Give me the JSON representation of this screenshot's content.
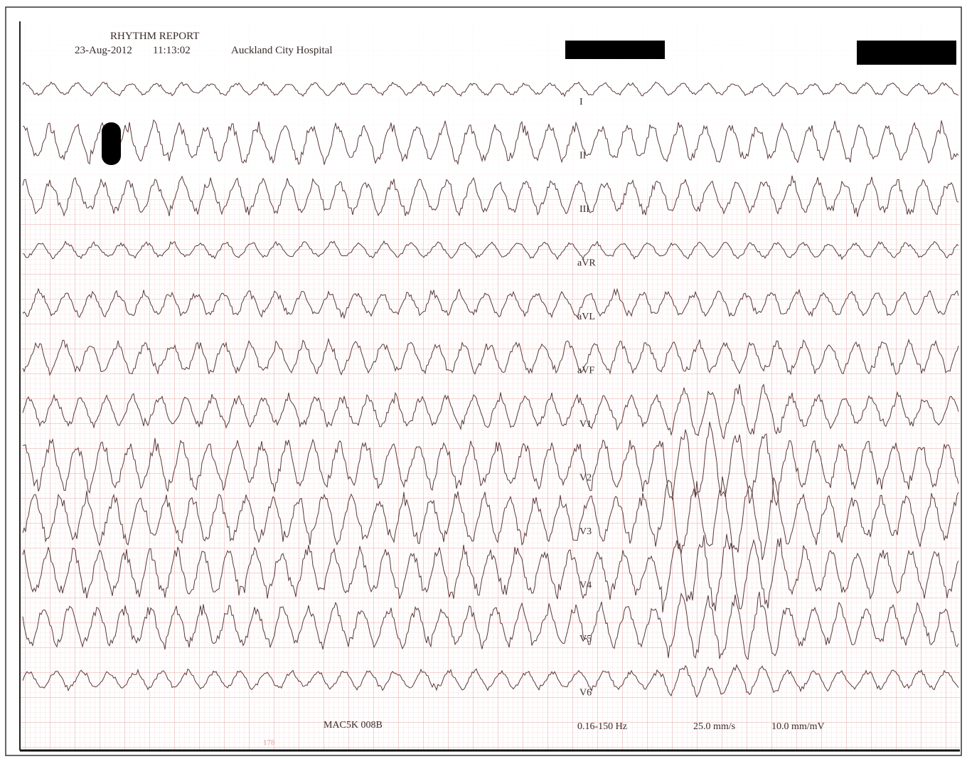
{
  "header": {
    "title": "RHYTHM REPORT",
    "date": "23-Aug-2012",
    "time": "11:13:02",
    "hospital": "Auckland City Hospital"
  },
  "leads": [
    "I",
    "II",
    "III",
    "aVR",
    "aVL",
    "aVF",
    "V1",
    "V2",
    "V3",
    "V4",
    "V5",
    "V6"
  ],
  "footer": {
    "device": "MAC5K 008B",
    "filter": "0.16-150 Hz",
    "speed": "25.0 mm/s",
    "gain": "10.0 mm/mV",
    "page_mark": "178"
  }
}
